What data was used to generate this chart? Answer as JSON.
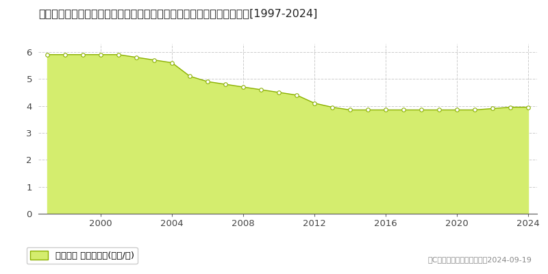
{
  "title": "福島県西白河郡中島村大字滑津字二ツ山３６番１　公示地価　地価推移[1997-2024]",
  "years": [
    1997,
    1998,
    1999,
    2000,
    2001,
    2002,
    2003,
    2004,
    2005,
    2006,
    2007,
    2008,
    2009,
    2010,
    2011,
    2012,
    2013,
    2014,
    2015,
    2016,
    2017,
    2018,
    2019,
    2020,
    2021,
    2022,
    2023,
    2024
  ],
  "values": [
    5.9,
    5.9,
    5.9,
    5.9,
    5.9,
    5.8,
    5.7,
    5.6,
    5.1,
    4.9,
    4.8,
    4.7,
    4.6,
    4.5,
    4.4,
    4.1,
    3.95,
    3.85,
    3.85,
    3.85,
    3.85,
    3.85,
    3.85,
    3.85,
    3.85,
    3.9,
    3.95,
    3.95
  ],
  "fill_color": "#d4ed6e",
  "line_color": "#8ab000",
  "marker_facecolor": "#ffffff",
  "marker_edgecolor": "#8ab000",
  "background_color": "#ffffff",
  "plot_bg_color": "#ffffff",
  "grid_color": "#cccccc",
  "ylim": [
    0,
    6.3
  ],
  "yticks": [
    0,
    1,
    2,
    3,
    4,
    5,
    6
  ],
  "xticks": [
    2000,
    2004,
    2008,
    2012,
    2016,
    2020,
    2024
  ],
  "xlim": [
    1996.5,
    2024.5
  ],
  "legend_label": "公示地価 平均坪単価(万円/坪)",
  "copyright_text": "（C）土地価格ドットコム　2024-09-19",
  "title_fontsize": 11.5,
  "tick_fontsize": 9.5,
  "legend_fontsize": 9.5,
  "copyright_fontsize": 8
}
